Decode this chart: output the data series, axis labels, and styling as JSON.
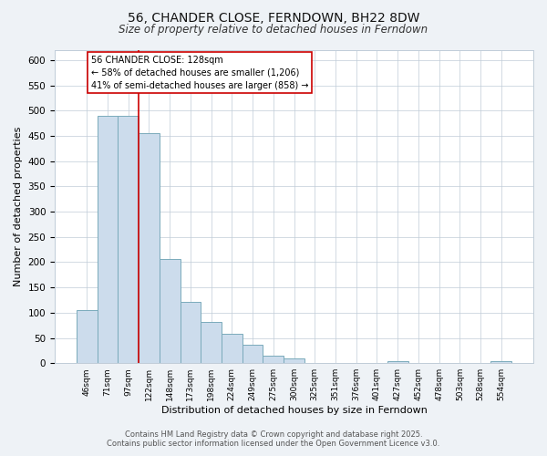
{
  "title": "56, CHANDER CLOSE, FERNDOWN, BH22 8DW",
  "subtitle": "Size of property relative to detached houses in Ferndown",
  "xlabel": "Distribution of detached houses by size in Ferndown",
  "ylabel": "Number of detached properties",
  "bar_labels": [
    "46sqm",
    "71sqm",
    "97sqm",
    "122sqm",
    "148sqm",
    "173sqm",
    "198sqm",
    "224sqm",
    "249sqm",
    "275sqm",
    "300sqm",
    "325sqm",
    "351sqm",
    "376sqm",
    "401sqm",
    "427sqm",
    "452sqm",
    "478sqm",
    "503sqm",
    "528sqm",
    "554sqm"
  ],
  "bar_values": [
    105,
    490,
    490,
    455,
    207,
    122,
    82,
    58,
    36,
    15,
    10,
    0,
    0,
    0,
    0,
    4,
    0,
    0,
    0,
    0,
    4
  ],
  "bar_color": "#ccdcec",
  "bar_edgecolor": "#7aaabb",
  "vline_color": "#cc0000",
  "annotation_line1": "56 CHANDER CLOSE: 128sqm",
  "annotation_line2": "← 58% of detached houses are smaller (1,206)",
  "annotation_line3": "41% of semi-detached houses are larger (858) →",
  "annotation_fontsize": 7.0,
  "title_fontsize": 10,
  "subtitle_fontsize": 8.5,
  "xlabel_fontsize": 8,
  "ylabel_fontsize": 8,
  "ylim": [
    0,
    620
  ],
  "yticks": [
    0,
    50,
    100,
    150,
    200,
    250,
    300,
    350,
    400,
    450,
    500,
    550,
    600
  ],
  "footer_line1": "Contains HM Land Registry data © Crown copyright and database right 2025.",
  "footer_line2": "Contains public sector information licensed under the Open Government Licence v3.0.",
  "bg_color": "#eef2f6",
  "plot_bg_color": "#ffffff",
  "grid_color": "#c0ccd8"
}
